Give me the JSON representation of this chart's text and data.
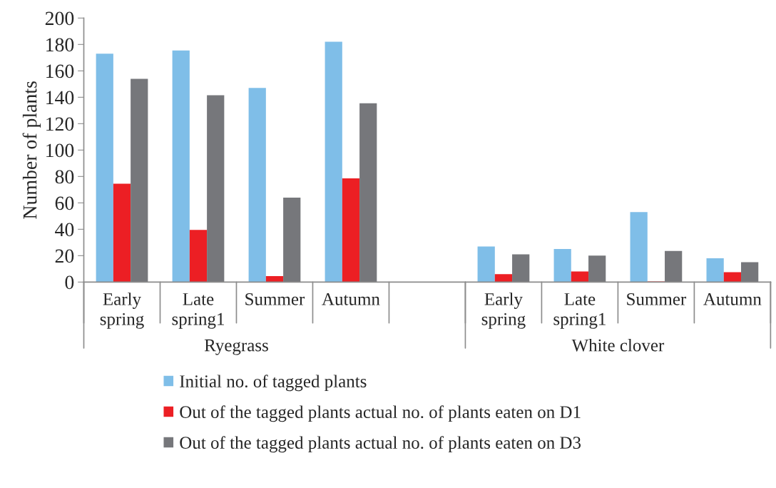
{
  "chart_data": {
    "type": "bar",
    "ylabel": "Number of plants",
    "categories": [
      "Early\nspring",
      "Late\nspring1",
      "Summer",
      "Autumn",
      null,
      "Early\nspring",
      "Late\nspring1",
      "Summer",
      "Autumn"
    ],
    "series": [
      {
        "name": "Initial no. of tagged plants",
        "color": "#7fbee8",
        "values": [
          173,
          175.5,
          147,
          182,
          null,
          27,
          25,
          53,
          18
        ]
      },
      {
        "name": "Out of the tagged plants actual no. of plants eaten on D1",
        "color": "#ec1f24",
        "values": [
          74.5,
          39.5,
          4.5,
          78.5,
          null,
          6,
          8,
          0.5,
          7.5
        ]
      },
      {
        "name": "Out of the tagged plants actual no. of plants eaten on D3",
        "color": "#76777b",
        "values": [
          154,
          141.5,
          64,
          135.5,
          null,
          21,
          20,
          23.5,
          15
        ]
      }
    ],
    "annotations": [
      "Ryegrass",
      "White clover"
    ],
    "ylim": [
      0,
      200
    ],
    "yticks": [
      0,
      20,
      40,
      60,
      80,
      100,
      120,
      140,
      160,
      180,
      200
    ],
    "grid": false,
    "legend": "bottom"
  }
}
